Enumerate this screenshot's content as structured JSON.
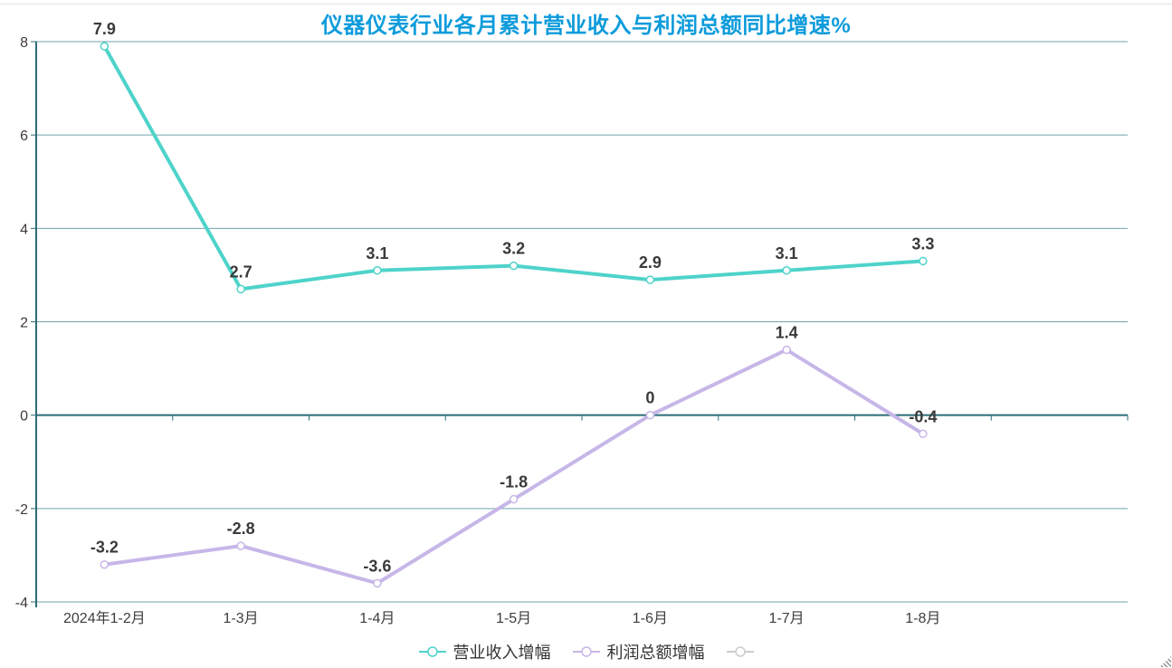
{
  "chart_data": {
    "type": "line",
    "title": "仪器仪表行业各月累计营业收入与利润总额同比增速%",
    "categories": [
      "2024年1-2月",
      "1-3月",
      "1-4月",
      "1-5月",
      "1-6月",
      "1-7月",
      "1-8月"
    ],
    "series": [
      {
        "name": "营业收入增幅",
        "color": "#4ed3ca",
        "values": [
          7.9,
          2.7,
          3.1,
          3.2,
          2.9,
          3.1,
          3.3
        ]
      },
      {
        "name": "利润总额增幅",
        "color": "#c7b6e8",
        "values": [
          -3.2,
          -2.8,
          -3.6,
          -1.8,
          0,
          1.4,
          -0.4
        ]
      }
    ],
    "legend_extra": {
      "name": "",
      "color": "#cccccc"
    },
    "yticks": [
      -4,
      -2,
      0,
      2,
      4,
      6,
      8
    ],
    "ylim": [
      -4,
      8
    ],
    "x_slots": 8,
    "grid_on": true,
    "legend_position": "bottom",
    "marker": "hollow-circle"
  },
  "colors": {
    "title": "#0d9bdb",
    "grid": "#6fa3ab",
    "axis": "#2b6c77",
    "data_label": "#3a3a3a",
    "axis_label": "#3d3d3d",
    "legend_text": "#333333",
    "top_border": "#e3e3e3"
  }
}
